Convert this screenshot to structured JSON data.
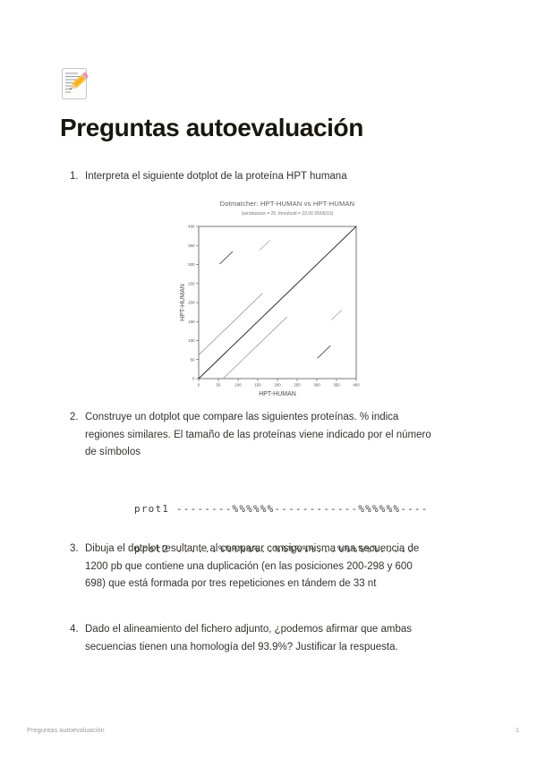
{
  "page": {
    "title": "Preguntas autoevaluación",
    "icon": "memo-pencil-emoji",
    "footer": {
      "left": "Preguntas autoevaluación",
      "page_number": "1"
    }
  },
  "questions": [
    {
      "number": "1.",
      "lines": [
        "Interpreta el siguiente dotplot de la proteína HPT humana"
      ]
    },
    {
      "number": "2.",
      "lines": [
        "Construye un dotplot que compare las siguientes proteínas. % indica",
        "regiones similares. El tamaño de las proteínas viene indicado por el número",
        "de símbolos"
      ]
    },
    {
      "number": "3.",
      "lines": [
        "Dibuja el dotplot resultante al comparar consigo misma una secuencia de",
        "1200 pb que contiene una duplicación (en las posiciones 200-298 y 600",
        "698) que está formada por tres repeticiones en tándem de 33 nt"
      ]
    },
    {
      "number": "4.",
      "lines": [
        "Dado el alineamiento del fichero adjunto, ¿podemos afirmar que ambas",
        "secuencias tienen una homología del 93.9%? Justificar la respuesta."
      ]
    }
  ],
  "sequence_block": {
    "lines": [
      "prot1 --------%%%%%%------------%%%%%%----",
      "prot2 ......%%%%%%..%%%%%%...%%%%%%....."
    ]
  },
  "chart_data": {
    "type": "scatter",
    "subtype": "dotplot-self-comparison",
    "title": "Dotmatcher: HPT-HUMAN vs HPT-HUMAN",
    "subtitle": "(windowsize = 25, threshold = 23.00  25/06/10)",
    "xlabel": "HPT-HUMAN",
    "ylabel": "HPT-HUMAN",
    "xlim": [
      0,
      400
    ],
    "ylim": [
      0,
      400
    ],
    "xticks": [
      0,
      50,
      100,
      150,
      200,
      250,
      300,
      350,
      400
    ],
    "yticks": [
      0,
      50,
      100,
      150,
      200,
      250,
      300,
      350,
      400
    ],
    "grid": false,
    "legend": false,
    "frame_color": "#555555",
    "segments": [
      {
        "name": "main-diagonal",
        "x1": 0,
        "y1": 0,
        "x2": 400,
        "y2": 400,
        "color": "#2f2f2f",
        "width": 1.0
      },
      {
        "name": "repeat-upper-long",
        "x1": 1,
        "y1": 63,
        "x2": 162,
        "y2": 224,
        "color": "#8a8a8a",
        "width": 0.7
      },
      {
        "name": "repeat-lower-long",
        "x1": 63,
        "y1": 1,
        "x2": 224,
        "y2": 162,
        "color": "#8a8a8a",
        "width": 0.7
      },
      {
        "name": "repeat-upper-dark",
        "x1": 54,
        "y1": 302,
        "x2": 86,
        "y2": 334,
        "color": "#4a4a4a",
        "width": 0.9
      },
      {
        "name": "repeat-lower-dark",
        "x1": 302,
        "y1": 54,
        "x2": 334,
        "y2": 86,
        "color": "#4a4a4a",
        "width": 0.9
      },
      {
        "name": "repeat-upper-faint",
        "x1": 155,
        "y1": 338,
        "x2": 180,
        "y2": 363,
        "color": "#9a9a9a",
        "width": 0.7
      },
      {
        "name": "repeat-lower-faint",
        "x1": 338,
        "y1": 155,
        "x2": 363,
        "y2": 180,
        "color": "#9a9a9a",
        "width": 0.7
      }
    ]
  }
}
